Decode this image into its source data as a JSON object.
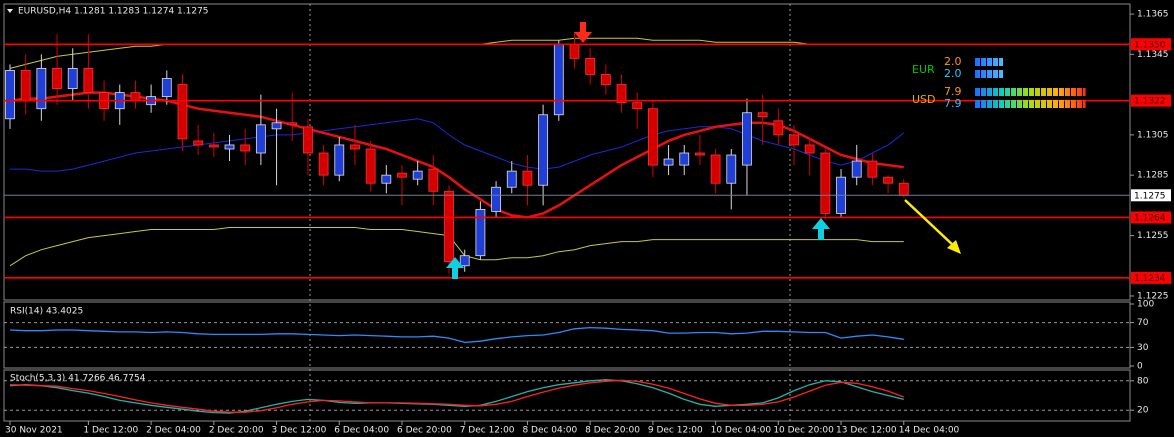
{
  "chart_data": [
    {
      "type": "candlestick",
      "title": "EURUSD,H4  1.1281 1.1283 1.1274 1.1275",
      "categories": [
        "30 Nov 2021",
        null,
        null,
        null,
        null,
        "1 Dec 12:00",
        null,
        null,
        null,
        "2 Dec 04:00",
        null,
        null,
        null,
        "2 Dec 20:00",
        null,
        null,
        null,
        "3 Dec 12:00",
        null,
        null,
        null,
        "6 Dec 04:00",
        null,
        null,
        null,
        "6 Dec 20:00",
        null,
        null,
        null,
        "7 Dec 12:00",
        null,
        null,
        null,
        "8 Dec 04:00",
        null,
        null,
        null,
        "8 Dec 20:00",
        null,
        null,
        null,
        "9 Dec 12:00",
        null,
        null,
        null,
        "10 Dec 04:00",
        null,
        null,
        null,
        "10 Dec 20:00",
        null,
        null,
        null,
        "13 Dec 12:00",
        null,
        null,
        null,
        "14 Dec 04:00"
      ],
      "open": [
        1.1313,
        1.1337,
        1.1318,
        1.1338,
        1.1328,
        1.1338,
        1.1326,
        1.1318,
        1.1326,
        1.132,
        1.1324,
        1.133,
        1.1302,
        1.13,
        1.1298,
        1.13,
        1.1296,
        1.1308,
        1.1311,
        1.1309,
        1.1296,
        1.1285,
        1.13,
        1.1298,
        1.1281,
        1.1286,
        1.1283,
        1.1288,
        1.1277,
        1.124,
        1.1245,
        1.1267,
        1.1279,
        1.1287,
        1.128,
        1.1315,
        1.135,
        1.1343,
        1.1335,
        1.133,
        1.1321,
        1.1318,
        1.129,
        1.129,
        1.1296,
        1.1295,
        1.1281,
        1.129,
        1.1316,
        1.1312,
        1.1305,
        1.13,
        1.1296,
        1.1266,
        1.1284,
        1.1292,
        1.1284,
        1.1281
      ],
      "high": [
        1.134,
        1.1345,
        1.1345,
        1.1355,
        1.1348,
        1.1355,
        1.1332,
        1.133,
        1.1332,
        1.133,
        1.1337,
        1.1335,
        1.131,
        1.1306,
        1.1305,
        1.1308,
        1.1325,
        1.1318,
        1.1326,
        1.1313,
        1.13,
        1.1304,
        1.131,
        1.1302,
        1.129,
        1.129,
        1.1292,
        1.1295,
        1.128,
        1.1248,
        1.1272,
        1.1282,
        1.1292,
        1.1295,
        1.132,
        1.1352,
        1.1356,
        1.1348,
        1.134,
        1.1335,
        1.1326,
        1.1322,
        1.13,
        1.13,
        1.1305,
        1.1298,
        1.1298,
        1.1323,
        1.1325,
        1.1318,
        1.131,
        1.1304,
        1.1298,
        1.1288,
        1.13,
        1.1296,
        1.1285,
        1.1283
      ],
      "low": [
        1.1308,
        1.1315,
        1.1312,
        1.132,
        1.1322,
        1.1318,
        1.1312,
        1.131,
        1.1318,
        1.1316,
        1.132,
        1.1297,
        1.1295,
        1.1294,
        1.1292,
        1.129,
        1.129,
        1.128,
        1.1302,
        1.1285,
        1.128,
        1.1282,
        1.129,
        1.1277,
        1.1276,
        1.127,
        1.128,
        1.127,
        1.1236,
        1.1237,
        1.1243,
        1.1264,
        1.1276,
        1.127,
        1.127,
        1.1312,
        1.1338,
        1.133,
        1.1325,
        1.1316,
        1.1308,
        1.1284,
        1.1285,
        1.1285,
        1.129,
        1.1276,
        1.1268,
        1.1275,
        1.13,
        1.13,
        1.129,
        1.1285,
        1.1263,
        1.1264,
        1.128,
        1.128,
        1.1276,
        1.1274
      ],
      "close": [
        1.1337,
        1.1322,
        1.1338,
        1.1328,
        1.1338,
        1.1326,
        1.1318,
        1.1326,
        1.1322,
        1.1324,
        1.1333,
        1.1303,
        1.13,
        1.1299,
        1.13,
        1.1297,
        1.131,
        1.1311,
        1.131,
        1.1296,
        1.1285,
        1.13,
        1.1298,
        1.1281,
        1.1285,
        1.1284,
        1.1287,
        1.1277,
        1.1242,
        1.1245,
        1.1268,
        1.1279,
        1.1287,
        1.128,
        1.1315,
        1.135,
        1.1343,
        1.1335,
        1.133,
        1.1321,
        1.1318,
        1.129,
        1.1293,
        1.1296,
        1.1295,
        1.1281,
        1.1295,
        1.1316,
        1.1314,
        1.1305,
        1.13,
        1.1296,
        1.1266,
        1.1284,
        1.1292,
        1.1284,
        1.1281,
        1.1275
      ],
      "bull_color": "#1f3fd6",
      "bear_color": "#d40000",
      "series": [
        {
          "color": "#c8c83c",
          "width": 1,
          "values": [
            1.1338,
            1.134,
            1.1342,
            1.1344,
            1.1345,
            1.1346,
            1.1347,
            1.1348,
            1.1349,
            1.1349,
            1.135,
            1.135,
            1.135,
            1.135,
            1.135,
            1.135,
            1.135,
            1.135,
            1.135,
            1.135,
            1.135,
            1.135,
            1.135,
            1.135,
            1.135,
            1.135,
            1.135,
            1.135,
            1.135,
            1.135,
            1.135,
            1.1351,
            1.1352,
            1.1352,
            1.1352,
            1.1352,
            1.1353,
            1.1353,
            1.1353,
            1.1353,
            1.1353,
            1.1352,
            1.1352,
            1.1352,
            1.1352,
            1.1351,
            1.1351,
            1.1351,
            1.1351,
            1.1351,
            1.1351,
            1.135,
            1.135,
            1.135,
            1.135,
            1.135,
            1.135,
            1.135
          ]
        },
        {
          "color": "#c8c83c",
          "width": 1,
          "values": [
            1.124,
            1.1245,
            1.1248,
            1.125,
            1.1252,
            1.1254,
            1.1255,
            1.1256,
            1.1257,
            1.1258,
            1.1258,
            1.1258,
            1.1258,
            1.1258,
            1.1259,
            1.1259,
            1.1259,
            1.1259,
            1.1259,
            1.1259,
            1.1259,
            1.1259,
            1.1259,
            1.1258,
            1.1258,
            1.1258,
            1.1257,
            1.1256,
            1.1255,
            1.1245,
            1.1243,
            1.1243,
            1.1244,
            1.1244,
            1.1245,
            1.1247,
            1.1248,
            1.125,
            1.1251,
            1.1252,
            1.1252,
            1.1253,
            1.1253,
            1.1253,
            1.1253,
            1.1253,
            1.1253,
            1.1253,
            1.1253,
            1.1253,
            1.1253,
            1.1253,
            1.1253,
            1.1253,
            1.1253,
            1.1252,
            1.1252,
            1.1252
          ]
        },
        {
          "color": "#1a2ad8",
          "width": 1,
          "values": [
            1.1288,
            1.1288,
            1.1287,
            1.1287,
            1.1288,
            1.129,
            1.1292,
            1.1294,
            1.1296,
            1.1297,
            1.1298,
            1.1299,
            1.13,
            1.1301,
            1.1302,
            1.1303,
            1.1304,
            1.1305,
            1.1305,
            1.1306,
            1.1307,
            1.1308,
            1.1309,
            1.131,
            1.1311,
            1.1312,
            1.1313,
            1.1311,
            1.1305,
            1.13,
            1.1297,
            1.1294,
            1.1291,
            1.1289,
            1.1288,
            1.1289,
            1.1292,
            1.1295,
            1.1297,
            1.1299,
            1.1302,
            1.1305,
            1.1307,
            1.1308,
            1.1309,
            1.1309,
            1.1308,
            1.1305,
            1.1302,
            1.13,
            1.1298,
            1.1295,
            1.1292,
            1.129,
            1.1292,
            1.1296,
            1.13,
            1.1306
          ]
        },
        {
          "color": "#e81010",
          "width": 2.5,
          "values": [
            1.1322,
            1.1323,
            1.1323,
            1.1324,
            1.1325,
            1.1326,
            1.1326,
            1.1325,
            1.1324,
            1.1323,
            1.1322,
            1.132,
            1.1318,
            1.1317,
            1.1316,
            1.1315,
            1.1314,
            1.1312,
            1.131,
            1.1308,
            1.1306,
            1.1304,
            1.1302,
            1.13,
            1.1298,
            1.1295,
            1.1292,
            1.1289,
            1.1284,
            1.1278,
            1.1273,
            1.1268,
            1.1265,
            1.1264,
            1.1266,
            1.127,
            1.1275,
            1.128,
            1.1285,
            1.129,
            1.1294,
            1.1298,
            1.1302,
            1.1305,
            1.1307,
            1.1309,
            1.131,
            1.1311,
            1.1311,
            1.131,
            1.1307,
            1.1303,
            1.1299,
            1.1295,
            1.1293,
            1.1291,
            1.129,
            1.1289
          ]
        }
      ],
      "ylim": [
        1.1223,
        1.137
      ],
      "yticks": [
        1.1365,
        1.1345,
        1.1305,
        1.1285,
        1.1255,
        1.1225
      ],
      "levels": [
        {
          "value": 1.135,
          "label": "1.1350"
        },
        1.1322,
        1.1264,
        1.1234
      ],
      "level_color": "#ff0000",
      "last_price": 1.1275,
      "strength": [
        {
          "name": "EUR",
          "color": "#00c800",
          "value_colors": [
            "#ff9c00",
            "#26c6ff"
          ],
          "values": [
            2.0,
            2.0
          ],
          "value_labels": [
            "2.0",
            "2.0"
          ]
        },
        {
          "name": "USD",
          "color": "#d6b400",
          "value_colors": [
            "#ff9c00",
            "#26c6ff"
          ],
          "values": [
            7.9,
            7.9
          ],
          "value_labels": [
            "7.9",
            "7.9"
          ]
        }
      ]
    },
    {
      "type": "line",
      "title": "RSI(14) 43.4025",
      "series": [
        {
          "color": "#2a8cff",
          "values": [
            58,
            57,
            57,
            58,
            58,
            57,
            56,
            55,
            55,
            54,
            55,
            54,
            52,
            51,
            51,
            51,
            51,
            52,
            52,
            51,
            50,
            49,
            50,
            49,
            48,
            47,
            47,
            48,
            45,
            38,
            40,
            44,
            47,
            49,
            50,
            54,
            60,
            62,
            61,
            59,
            58,
            57,
            53,
            53,
            54,
            54,
            52,
            53,
            56,
            56,
            55,
            54,
            54,
            45,
            48,
            50,
            47,
            43
          ]
        }
      ],
      "ylim": [
        0,
        100
      ],
      "yticks": [
        100,
        70,
        30,
        0
      ],
      "levels": [
        70,
        30
      ]
    },
    {
      "type": "line",
      "title": "Stoch(5,3,3) 41.7266 46.7754",
      "series": [
        {
          "color": "#20b2aa",
          "values": [
            70,
            72,
            70,
            66,
            60,
            55,
            48,
            40,
            35,
            30,
            26,
            22,
            18,
            15,
            14,
            18,
            25,
            32,
            38,
            42,
            40,
            36,
            34,
            35,
            35,
            34,
            33,
            32,
            30,
            28,
            30,
            38,
            48,
            58,
            66,
            72,
            76,
            80,
            82,
            80,
            74,
            66,
            55,
            42,
            32,
            28,
            30,
            32,
            35,
            45,
            60,
            72,
            80,
            78,
            68,
            58,
            50,
            42
          ]
        },
        {
          "color": "#ff2020",
          "values": [
            72,
            71,
            70,
            69,
            64,
            60,
            54,
            48,
            41,
            35,
            30,
            26,
            22,
            18,
            16,
            16,
            19,
            25,
            32,
            37,
            40,
            39,
            37,
            35,
            35,
            35,
            34,
            33,
            32,
            30,
            29,
            32,
            38,
            48,
            57,
            65,
            71,
            76,
            79,
            81,
            79,
            73,
            65,
            54,
            43,
            34,
            30,
            30,
            32,
            37,
            47,
            59,
            71,
            77,
            75,
            68,
            59,
            47
          ]
        }
      ],
      "ylim": [
        0,
        100
      ],
      "yticks": [
        80,
        20
      ],
      "levels": [
        80,
        20
      ]
    }
  ]
}
